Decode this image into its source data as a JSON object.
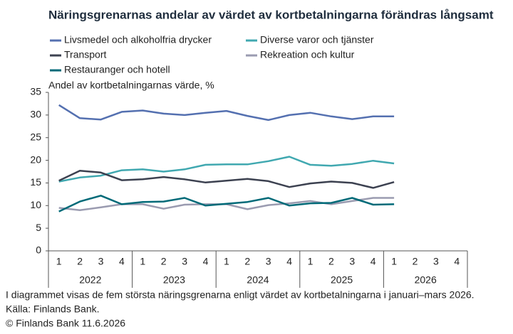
{
  "chart_data": {
    "type": "line",
    "title": "Näringsgrenarnas andelar av värdet av kortbetalningarna förändras långsamt",
    "y_label": "Andel av kortbetalningarnas värde, %",
    "categories": [
      "1",
      "2",
      "3",
      "4",
      "1",
      "2",
      "3",
      "4",
      "1",
      "2",
      "3",
      "4",
      "1",
      "2",
      "3",
      "4",
      "1",
      "2",
      "3",
      "4"
    ],
    "year_labels": [
      "2022",
      "2023",
      "2024",
      "2025",
      "2026"
    ],
    "ylim": [
      0,
      35
    ],
    "yticks": [
      0,
      5,
      10,
      15,
      20,
      25,
      30,
      35
    ],
    "series": [
      {
        "name": "Livsmedel och alkoholfria drycker",
        "color": "#5470b0",
        "values": [
          32.2,
          29.3,
          29.0,
          30.7,
          31.0,
          30.3,
          30.0,
          30.5,
          30.9,
          29.8,
          28.9,
          30.0,
          30.5,
          29.7,
          29.1,
          29.7,
          29.7,
          null,
          null,
          null
        ]
      },
      {
        "name": "Diverse varor och tjänster",
        "color": "#40a8b0",
        "values": [
          15.3,
          16.2,
          16.6,
          17.8,
          18.0,
          17.5,
          18.0,
          19.0,
          19.1,
          19.1,
          19.8,
          20.8,
          19.0,
          18.8,
          19.2,
          19.9,
          19.3,
          null,
          null,
          null
        ]
      },
      {
        "name": "Transport",
        "color": "#3c4150",
        "values": [
          15.5,
          17.7,
          17.3,
          15.6,
          15.8,
          16.3,
          15.8,
          15.1,
          15.5,
          15.9,
          15.4,
          14.1,
          14.9,
          15.3,
          15.0,
          13.9,
          15.2,
          null,
          null,
          null
        ]
      },
      {
        "name": "Rekreation och kultur",
        "color": "#9a9bb0",
        "values": [
          9.5,
          9.0,
          9.6,
          10.3,
          10.3,
          9.3,
          10.2,
          10.3,
          10.3,
          9.2,
          10.1,
          10.5,
          11.0,
          10.3,
          11.0,
          11.7,
          11.7,
          null,
          null,
          null
        ]
      },
      {
        "name": "Restauranger och hotell",
        "color": "#006a78",
        "values": [
          8.7,
          10.9,
          12.2,
          10.3,
          10.8,
          10.9,
          11.7,
          10.0,
          10.4,
          10.8,
          11.7,
          10.0,
          10.5,
          10.6,
          11.7,
          10.2,
          10.3,
          null,
          null,
          null
        ]
      }
    ],
    "notes": [
      "I diagrammet visas de fem största näringsgrenarna enligt värdet av kortbetalningarna i januari–mars 2026.",
      "Källa: Finlands Bank.",
      "© Finlands Bank 11.6.2026"
    ]
  }
}
